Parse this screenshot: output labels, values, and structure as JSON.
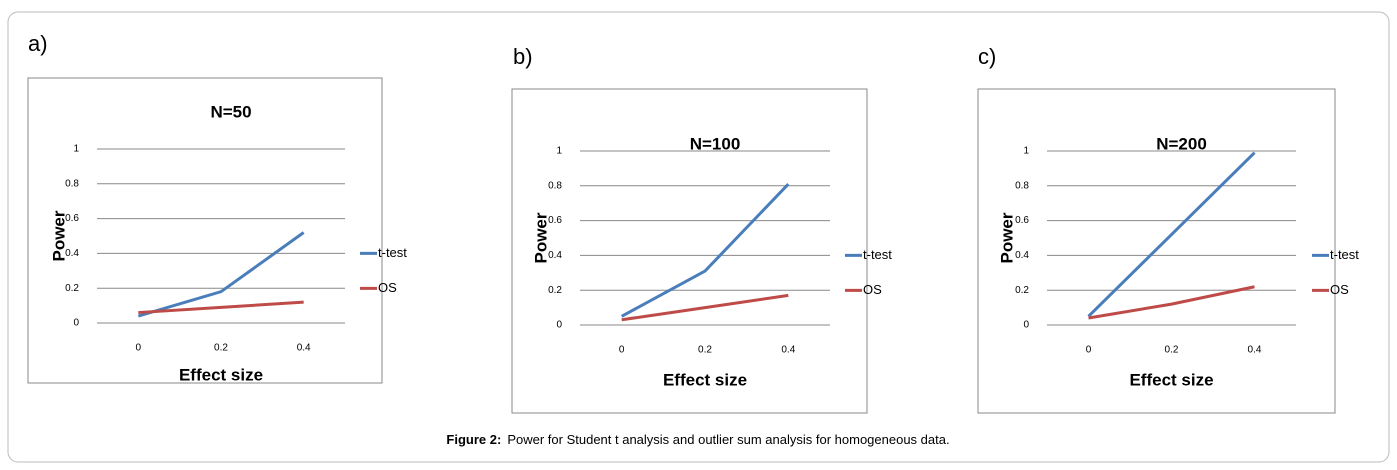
{
  "chart_data": [
    {
      "type": "line",
      "panel": "a)",
      "title": "N=50",
      "xlabel": "Effect size",
      "ylabel": "Power",
      "categories": [
        "0",
        "0.2",
        "0.4"
      ],
      "series": [
        {
          "name": "t-test",
          "color": "#4a7ebb",
          "values": [
            0.04,
            0.18,
            0.52
          ]
        },
        {
          "name": "OS",
          "color": "#be4b48",
          "values": [
            0.06,
            0.09,
            0.12
          ]
        }
      ],
      "ylim": [
        0,
        1
      ],
      "yticks": [
        0,
        0.2,
        0.4,
        0.6,
        0.8,
        1
      ],
      "grid": true
    },
    {
      "type": "line",
      "panel": "b)",
      "title": "N=100",
      "xlabel": "Effect size",
      "ylabel": "Power",
      "categories": [
        "0",
        "0.2",
        "0.4"
      ],
      "series": [
        {
          "name": "t-test",
          "color": "#4a7ebb",
          "values": [
            0.05,
            0.31,
            0.81
          ]
        },
        {
          "name": "OS",
          "color": "#be4b48",
          "values": [
            0.03,
            0.1,
            0.17
          ]
        }
      ],
      "ylim": [
        0,
        1
      ],
      "yticks": [
        0,
        0.2,
        0.4,
        0.6,
        0.8,
        1
      ],
      "grid": true
    },
    {
      "type": "line",
      "panel": "c)",
      "title": "N=200",
      "xlabel": "Effect size",
      "ylabel": "Power",
      "categories": [
        "0",
        "0.2",
        "0.4"
      ],
      "series": [
        {
          "name": "t-test",
          "color": "#4a7ebb",
          "values": [
            0.05,
            0.52,
            0.99
          ]
        },
        {
          "name": "OS",
          "color": "#be4b48",
          "values": [
            0.04,
            0.12,
            0.22
          ]
        }
      ],
      "ylim": [
        0,
        1
      ],
      "yticks": [
        0,
        0.2,
        0.4,
        0.6,
        0.8,
        1
      ],
      "grid": true
    }
  ],
  "caption": {
    "label": "Figure 2:",
    "text": "Power for Student t analysis and outlier sum analysis for homogeneous data."
  }
}
